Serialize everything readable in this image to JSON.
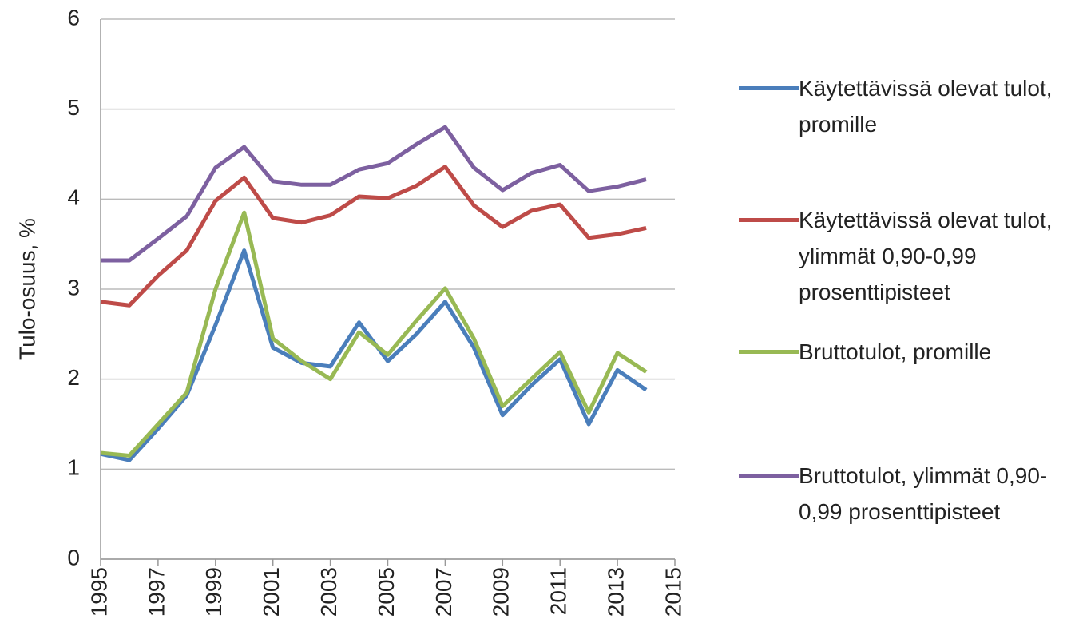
{
  "chart_data": {
    "type": "line",
    "ylabel": "Tulo-osuus, %",
    "x": [
      1995,
      1996,
      1997,
      1998,
      1999,
      2000,
      2001,
      2002,
      2003,
      2004,
      2005,
      2006,
      2007,
      2008,
      2009,
      2010,
      2011,
      2012,
      2013,
      2014
    ],
    "xlim": [
      1995,
      2015
    ],
    "xticks": [
      1995,
      1997,
      1999,
      2001,
      2003,
      2005,
      2007,
      2009,
      2011,
      2013,
      2015
    ],
    "ylim": [
      0,
      6
    ],
    "yticks": [
      0,
      1,
      2,
      3,
      4,
      5,
      6
    ],
    "grid": true,
    "legend": "right",
    "series": [
      {
        "name": "Käytettävissä olevat tulot, promille",
        "color": "#4a7ebb",
        "values": [
          1.17,
          1.1,
          1.45,
          1.82,
          2.6,
          3.43,
          2.35,
          2.18,
          2.14,
          2.63,
          2.2,
          2.5,
          2.86,
          2.35,
          1.6,
          1.93,
          2.22,
          1.5,
          2.1,
          1.88
        ]
      },
      {
        "name": "Käytettävissä olevat tulot, ylimmät 0,90-0,99 prosenttipisteet",
        "color": "#be4b48",
        "values": [
          2.86,
          2.82,
          3.15,
          3.43,
          3.98,
          4.24,
          3.79,
          3.74,
          3.82,
          4.03,
          4.01,
          4.15,
          4.36,
          3.93,
          3.69,
          3.87,
          3.94,
          3.57,
          3.61,
          3.68
        ]
      },
      {
        "name": "Bruttotulot, promille",
        "color": "#98b954",
        "values": [
          1.18,
          1.15,
          1.5,
          1.85,
          3.0,
          3.85,
          2.45,
          2.2,
          2.0,
          2.52,
          2.27,
          2.65,
          3.01,
          2.45,
          1.7,
          2.0,
          2.3,
          1.63,
          2.29,
          2.08
        ]
      },
      {
        "name": "Bruttotulot, ylimmät 0,90-0,99 prosenttipisteet",
        "color": "#7d60a0",
        "values": [
          3.32,
          3.32,
          3.56,
          3.81,
          4.35,
          4.58,
          4.2,
          4.16,
          4.16,
          4.33,
          4.4,
          4.61,
          4.8,
          4.35,
          4.1,
          4.29,
          4.38,
          4.09,
          4.14,
          4.22
        ]
      }
    ]
  }
}
